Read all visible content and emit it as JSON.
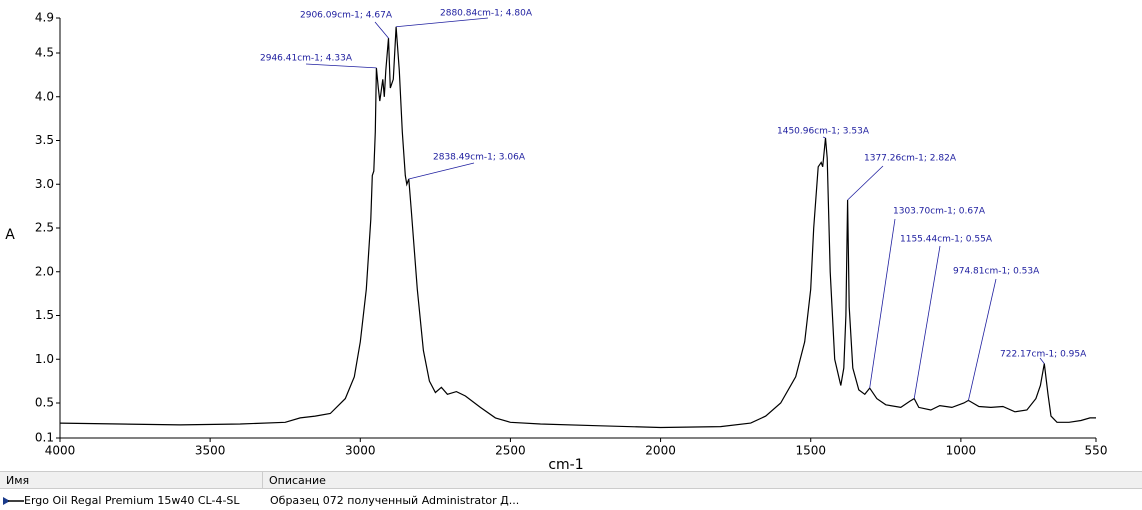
{
  "chart_data": {
    "type": "line",
    "xlabel": "cm-1",
    "ylabel": "A",
    "xlim": [
      4000,
      550
    ],
    "ylim": [
      0.1,
      4.9
    ],
    "xticks": [
      4000,
      3500,
      3000,
      2500,
      2000,
      1500,
      1000,
      550
    ],
    "yticks": [
      0.1,
      0.5,
      {
        "value": 1,
        "label": "1.0"
      },
      1.5,
      {
        "value": 2,
        "label": "2.0"
      },
      2.5,
      {
        "value": 3,
        "label": "3.0"
      },
      3.5,
      {
        "value": 4,
        "label": "4.0"
      },
      4.5,
      4.9
    ],
    "series": [
      {
        "name": "Ergo Oil Regal Premium 15w40 CL-4-SL",
        "color": "#000000",
        "x": [
          4000,
          3800,
          3600,
          3400,
          3250,
          3200,
          3150,
          3100,
          3050,
          3020,
          3000,
          2980,
          2965,
          2960,
          2955,
          2950,
          2946.41,
          2940,
          2935,
          2925,
          2920,
          2915,
          2906.09,
          2900,
          2890,
          2880.84,
          2870,
          2860,
          2850,
          2845,
          2838.49,
          2830,
          2810,
          2790,
          2770,
          2750,
          2730,
          2710,
          2680,
          2650,
          2600,
          2550,
          2500,
          2400,
          2200,
          2000,
          1800,
          1700,
          1650,
          1600,
          1550,
          1520,
          1500,
          1490,
          1475,
          1465,
          1460,
          1450.96,
          1445,
          1435,
          1420,
          1400,
          1390,
          1383,
          1377.26,
          1372,
          1360,
          1340,
          1320,
          1303.7,
          1280,
          1250,
          1200,
          1170,
          1155.44,
          1140,
          1100,
          1070,
          1030,
          990,
          974.81,
          940,
          900,
          860,
          820,
          780,
          750,
          735,
          722.17,
          710,
          700,
          680,
          640,
          600,
          570,
          550
        ],
        "values": [
          0.27,
          0.26,
          0.25,
          0.26,
          0.28,
          0.33,
          0.35,
          0.38,
          0.55,
          0.8,
          1.2,
          1.8,
          2.6,
          3.1,
          3.15,
          3.6,
          4.33,
          4.1,
          3.95,
          4.2,
          4.0,
          4.3,
          4.67,
          4.1,
          4.2,
          4.8,
          4.3,
          3.6,
          3.1,
          3.0,
          3.06,
          2.7,
          1.8,
          1.1,
          0.75,
          0.62,
          0.68,
          0.6,
          0.63,
          0.58,
          0.45,
          0.33,
          0.28,
          0.26,
          0.24,
          0.22,
          0.23,
          0.27,
          0.35,
          0.5,
          0.8,
          1.2,
          1.8,
          2.5,
          3.2,
          3.25,
          3.2,
          3.53,
          3.3,
          2.0,
          1.0,
          0.7,
          0.9,
          1.5,
          2.82,
          1.6,
          0.9,
          0.65,
          0.6,
          0.67,
          0.55,
          0.48,
          0.45,
          0.52,
          0.55,
          0.45,
          0.42,
          0.47,
          0.45,
          0.5,
          0.53,
          0.46,
          0.45,
          0.46,
          0.4,
          0.42,
          0.55,
          0.7,
          0.95,
          0.6,
          0.35,
          0.28,
          0.28,
          0.3,
          0.33,
          0.33
        ]
      }
    ],
    "annotations": [
      {
        "text": "2906.09cm-1; 4.67A",
        "x": 2906.09,
        "y": 4.67
      },
      {
        "text": "2880.84cm-1; 4.80A",
        "x": 2880.84,
        "y": 4.8
      },
      {
        "text": "2946.41cm-1; 4.33A",
        "x": 2946.41,
        "y": 4.33
      },
      {
        "text": "2838.49cm-1; 3.06A",
        "x": 2838.49,
        "y": 3.06
      },
      {
        "text": "1450.96cm-1; 3.53A",
        "x": 1450.96,
        "y": 3.53
      },
      {
        "text": "1377.26cm-1; 2.82A",
        "x": 1377.26,
        "y": 2.82
      },
      {
        "text": "1303.70cm-1; 0.67A",
        "x": 1303.7,
        "y": 0.67
      },
      {
        "text": "1155.44cm-1; 0.55A",
        "x": 1155.44,
        "y": 0.55
      },
      {
        "text": "974.81cm-1; 0.53A",
        "x": 974.81,
        "y": 0.53
      },
      {
        "text": "722.17cm-1; 0.95A",
        "x": 722.17,
        "y": 0.95
      }
    ]
  },
  "legend_table": {
    "headers": [
      "Имя",
      "Описание"
    ],
    "rows": [
      [
        "Ergo Oil Regal Premium 15w40 CL-4-SL",
        "Образец 072 полученный Administrator Д..."
      ]
    ]
  }
}
